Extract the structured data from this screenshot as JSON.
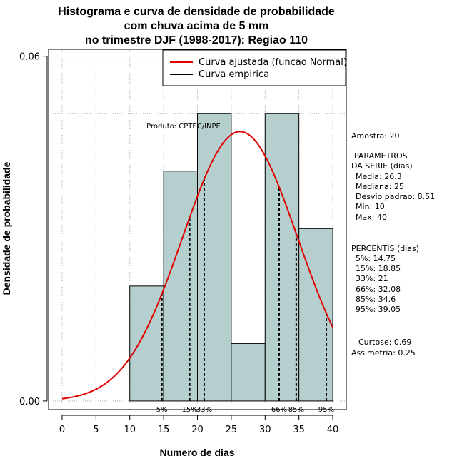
{
  "chart_data": {
    "type": "bar",
    "title": [
      "Histograma e curva de densidade de probabilidade",
      "com chuva acima de 5 mm",
      "no trimestre DJF (1998-2017): Regiao 110"
    ],
    "xlabel": "Numero de dias",
    "ylabel": "Densidade de probabilidade",
    "xlim": [
      -2,
      42
    ],
    "ylim": [
      -0.0015,
      0.0612
    ],
    "x_ticks": [
      0,
      5,
      10,
      15,
      20,
      25,
      30,
      35,
      40
    ],
    "y_ticks": [
      0.0,
      0.06
    ],
    "y_tick_labels": [
      "0.00",
      "0.06"
    ],
    "y_reference_line": 0.05,
    "bins": [
      {
        "x0": 10,
        "x1": 15,
        "density": 0.02
      },
      {
        "x0": 15,
        "x1": 20,
        "density": 0.04
      },
      {
        "x0": 20,
        "x1": 25,
        "density": 0.05
      },
      {
        "x0": 25,
        "x1": 30,
        "density": 0.01
      },
      {
        "x0": 30,
        "x1": 35,
        "density": 0.05
      },
      {
        "x0": 35,
        "x1": 40,
        "density": 0.03
      }
    ],
    "normal_fit": {
      "mean": 26.3,
      "sd": 8.51,
      "x_range": [
        0,
        40
      ]
    },
    "percentiles": [
      {
        "label": "5%",
        "value": 14.75
      },
      {
        "label": "15%",
        "value": 18.85
      },
      {
        "label": "33%",
        "value": 21
      },
      {
        "label": "66%",
        "value": 32.08
      },
      {
        "label": "85%",
        "value": 34.6
      },
      {
        "label": "95%",
        "value": 39.05
      }
    ],
    "legend": [
      {
        "label": "Curva ajustada (funcao Normal)",
        "color": "#e00000"
      },
      {
        "label": "Curva empirica",
        "color": "#000000"
      }
    ],
    "legend_position": "top-right",
    "annotation": "Produto: CPTEC/INPE",
    "grid": true
  },
  "side_panel": {
    "amostra": "Amostra: 20",
    "params_title_1": "PARAMETROS",
    "params_title_2": "DA SERIE (dias)",
    "params": [
      "Media: 26.3",
      "Mediana: 25",
      "Desvio padrao: 8.51",
      "Min: 10",
      "Max: 40"
    ],
    "percentis_title": "PERCENTIS (dias)",
    "percentis": [
      "5%: 14.75",
      "15%: 18.85",
      "33%: 21",
      "66%: 32.08",
      "85%: 34.6",
      "95%: 39.05"
    ],
    "curtose": "Curtose: 0.69",
    "assimetria": "Assimetria: 0.25"
  },
  "colors": {
    "bar_fill": "#b5cece",
    "curve": "#e00000",
    "grid": "#b0b0b0"
  }
}
